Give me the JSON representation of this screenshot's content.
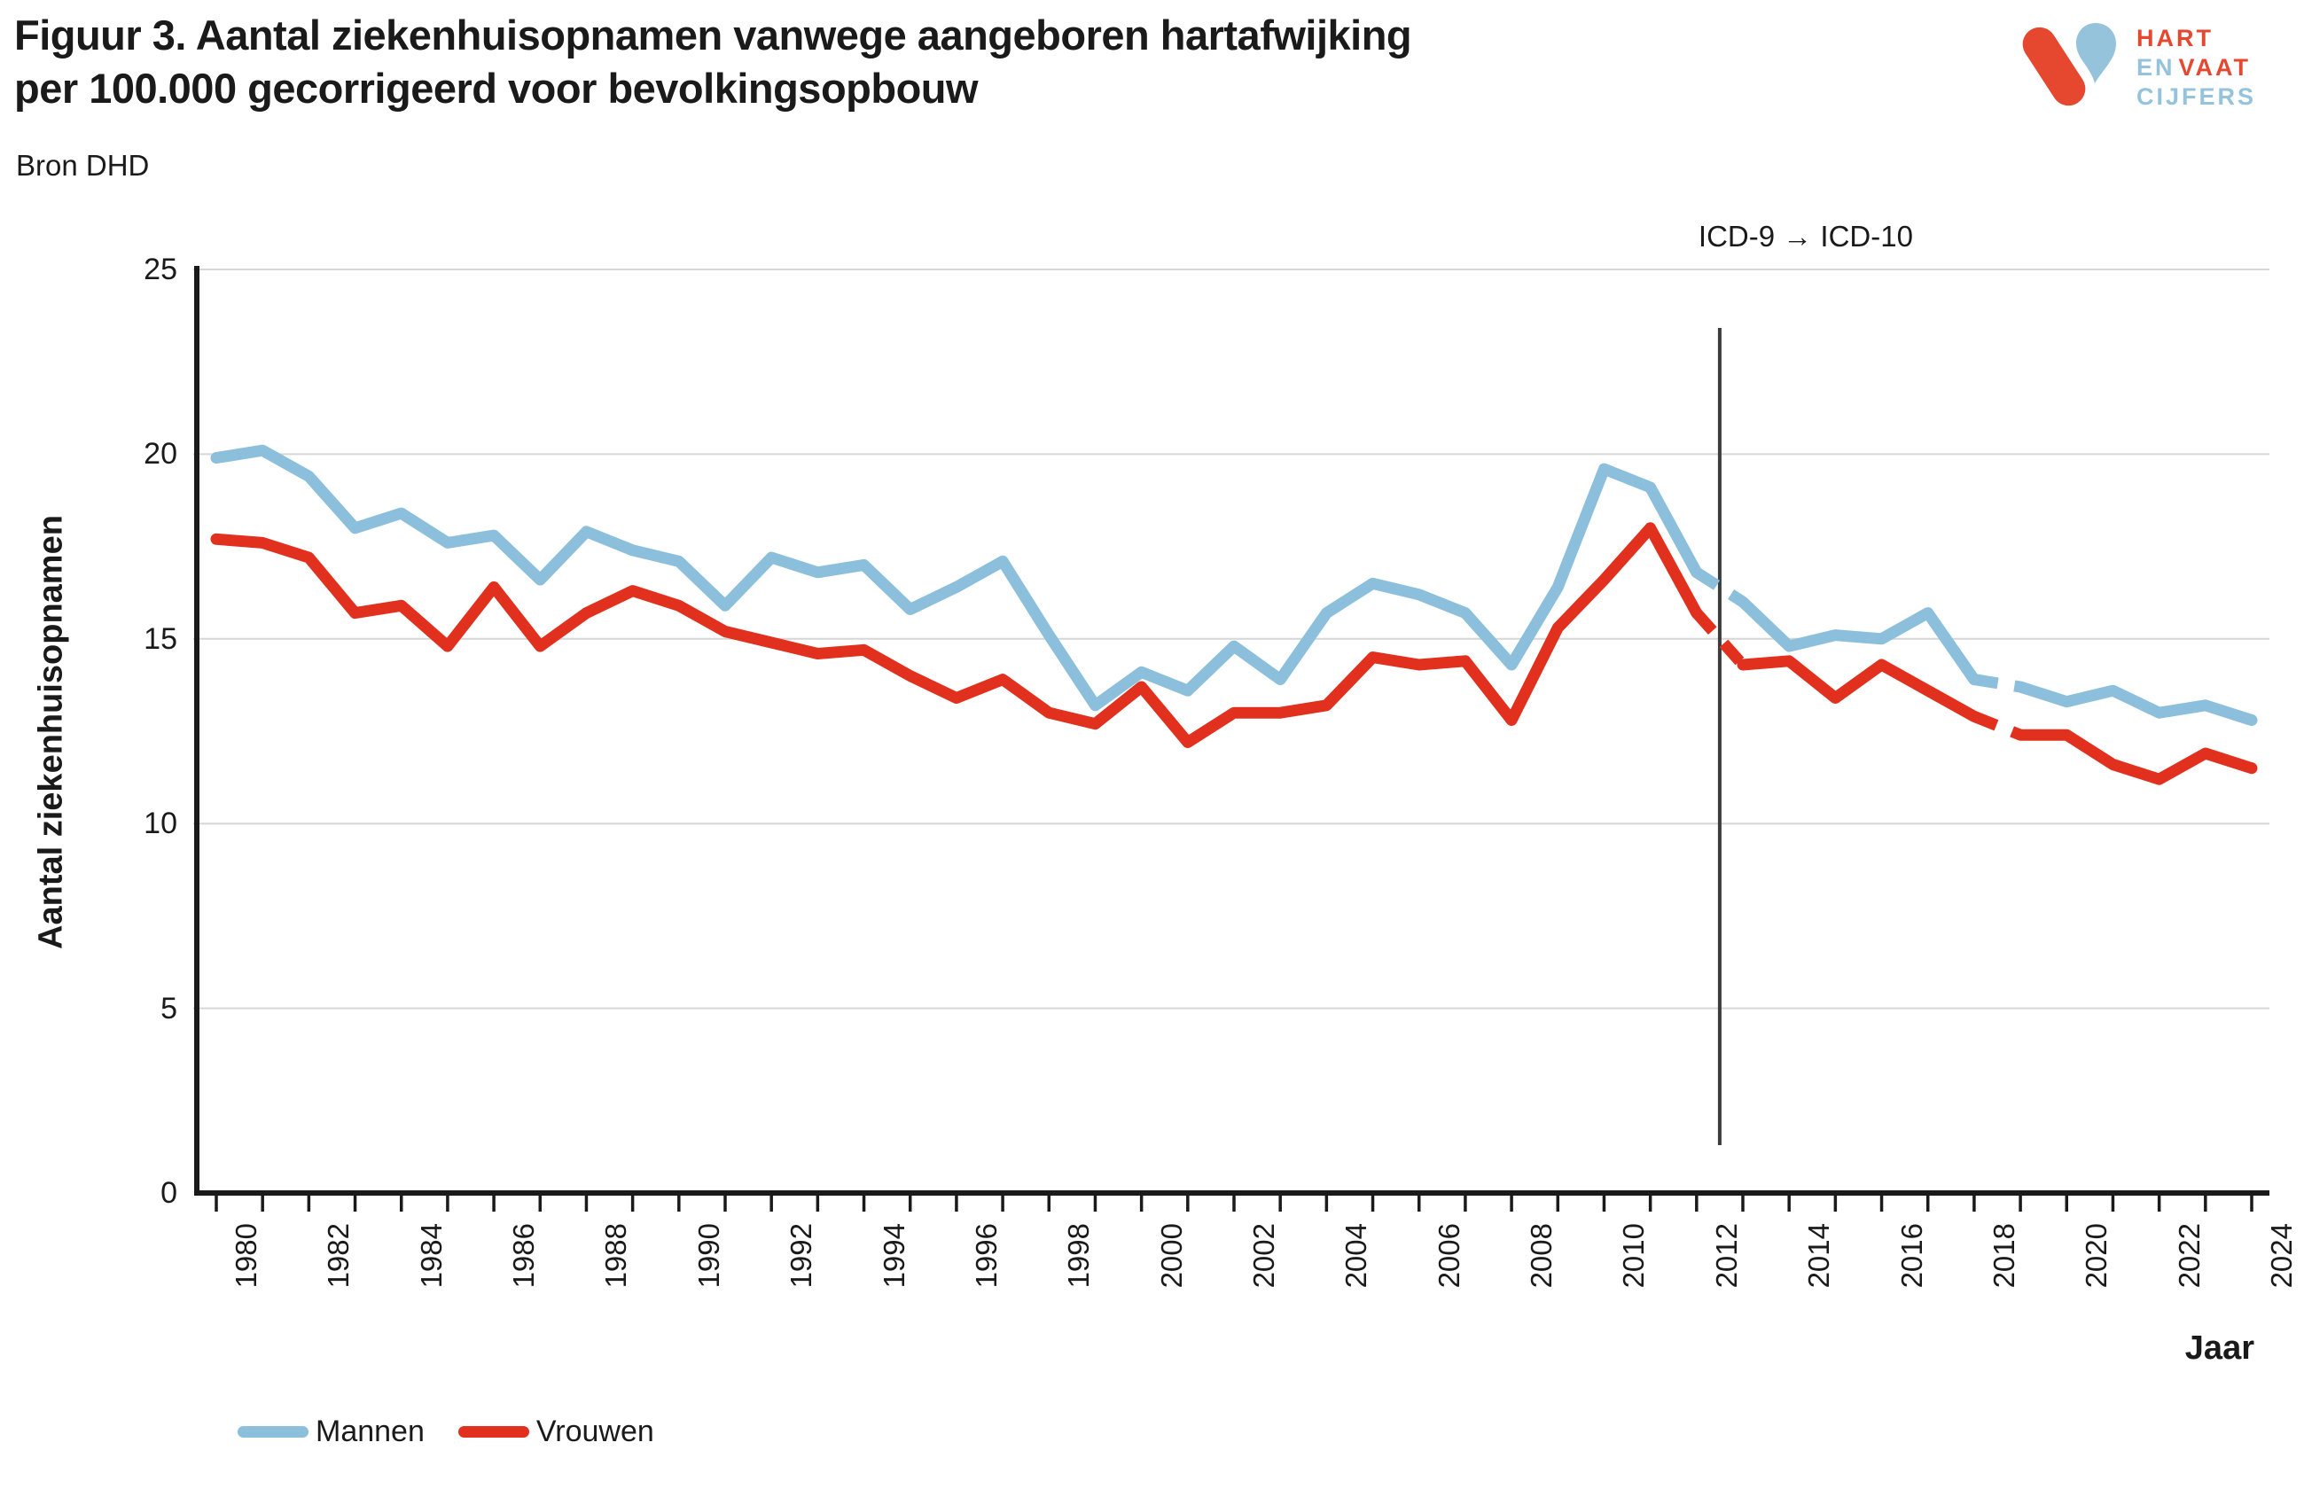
{
  "header": {
    "title_line1": "Figuur 3. Aantal ziekenhuisopnamen vanwege aangeboren hartafwijking",
    "title_line2": "per 100.000 gecorrigeerd voor bevolkingsopbouw",
    "source": "Bron DHD"
  },
  "logo": {
    "word1": "HART",
    "word2": "EN",
    "word3": "VAAT",
    "word4": "CIJFERS",
    "red": "#E6472F",
    "blue": "#95C3DC"
  },
  "chart_data": {
    "type": "line",
    "title": "Aantal ziekenhuisopnamen vanwege aangeboren hartafwijking per 100.000 gecorrigeerd voor bevolkingsopbouw",
    "xlabel": "Jaar",
    "ylabel": "Aantal ziekenhuisopnamen",
    "ylim": [
      0,
      25
    ],
    "yticks": [
      0,
      5,
      10,
      15,
      20,
      25
    ],
    "grid": "horizontal",
    "legend_position": "bottom-left",
    "x": [
      1980,
      1981,
      1982,
      1983,
      1984,
      1985,
      1986,
      1987,
      1988,
      1989,
      1990,
      1991,
      1992,
      1993,
      1994,
      1995,
      1996,
      1997,
      1998,
      1999,
      2000,
      2001,
      2002,
      2003,
      2004,
      2005,
      2006,
      2007,
      2008,
      2009,
      2010,
      2011,
      2012,
      2013,
      2014,
      2015,
      2016,
      2017,
      2018,
      2019,
      2020,
      2021,
      2022,
      2023,
      2024
    ],
    "xtick_labels": [
      1980,
      1982,
      1984,
      1986,
      1988,
      1990,
      1992,
      1994,
      1996,
      1998,
      2000,
      2002,
      2004,
      2006,
      2008,
      2010,
      2012,
      2014,
      2016,
      2018,
      2020,
      2022,
      2024
    ],
    "series": [
      {
        "name": "Mannen",
        "color": "#8CBFDB",
        "values": [
          19.9,
          20.1,
          19.4,
          18.0,
          18.4,
          17.6,
          17.8,
          16.6,
          17.9,
          17.4,
          17.1,
          15.9,
          17.2,
          16.8,
          17.0,
          15.8,
          16.4,
          17.1,
          15.1,
          13.2,
          14.1,
          13.6,
          14.8,
          13.9,
          15.7,
          16.5,
          16.2,
          15.7,
          14.3,
          16.4,
          19.6,
          19.1,
          16.8,
          16.0,
          14.8,
          15.1,
          15.0,
          15.7,
          13.9,
          13.7,
          13.3,
          13.6,
          13.0,
          13.2,
          12.8
        ]
      },
      {
        "name": "Vrouwen",
        "color": "#E1301E",
        "values": [
          17.7,
          17.6,
          17.2,
          15.7,
          15.9,
          14.8,
          16.4,
          14.8,
          15.7,
          16.3,
          15.9,
          15.2,
          14.9,
          14.6,
          14.7,
          14.0,
          13.4,
          13.9,
          13.0,
          12.7,
          13.7,
          12.2,
          13.0,
          13.0,
          13.2,
          14.5,
          14.3,
          14.4,
          12.8,
          15.3,
          16.6,
          18.0,
          15.7,
          14.3,
          14.4,
          13.4,
          14.3,
          13.6,
          12.9,
          12.4,
          12.4,
          11.6,
          11.2,
          11.9,
          11.5
        ]
      }
    ],
    "dashed_ranges": [
      [
        2012,
        2013
      ],
      [
        2018,
        2019
      ]
    ],
    "annotation": {
      "label": "ICD-9 → ICD-10",
      "x": 2012.5
    }
  }
}
